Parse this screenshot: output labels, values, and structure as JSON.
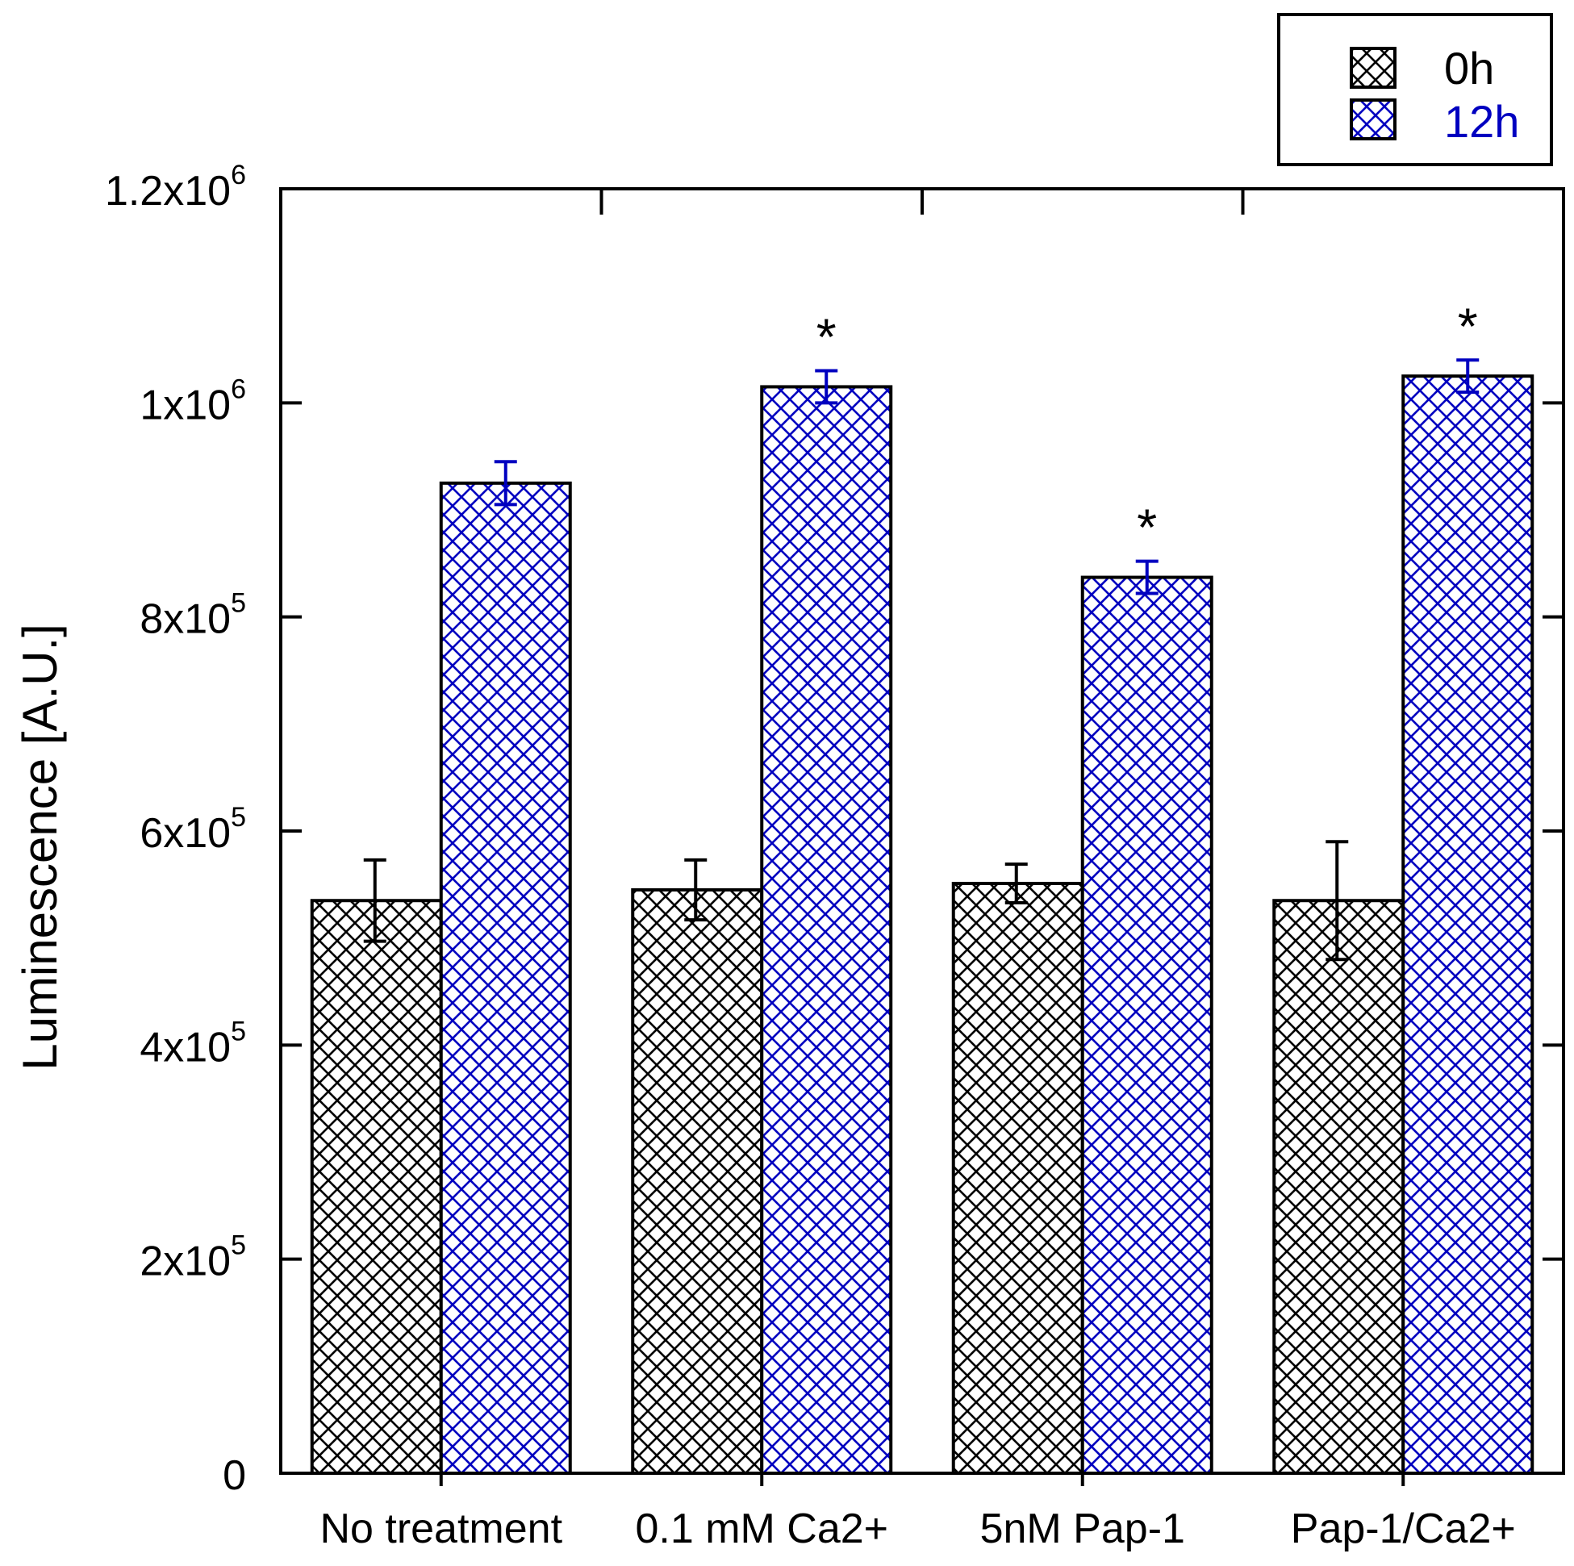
{
  "chart_data": {
    "type": "bar",
    "title": "",
    "xlabel": "",
    "ylabel": "Luminescence [A.U.]",
    "ylim": [
      0,
      1200000
    ],
    "categories": [
      "No treatment",
      "0.1 mM Ca2+",
      "5nM Pap-1",
      "Pap-1/Ca2+"
    ],
    "series": [
      {
        "name": "0h",
        "color": "#000000",
        "values": [
          535000,
          545000,
          551000,
          535000
        ],
        "errors": [
          38000,
          28000,
          18000,
          55000
        ]
      },
      {
        "name": "12h",
        "color": "#0000c0",
        "values": [
          925000,
          1015000,
          837000,
          1025000
        ],
        "errors": [
          20000,
          15000,
          15000,
          15000
        ]
      }
    ],
    "significance": [
      "",
      "*",
      "*",
      "*"
    ],
    "yticks": [
      {
        "value": 0,
        "mantissa": "0",
        "exponent": ""
      },
      {
        "value": 200000,
        "mantissa": "2x10",
        "exponent": "5"
      },
      {
        "value": 400000,
        "mantissa": "4x10",
        "exponent": "5"
      },
      {
        "value": 600000,
        "mantissa": "6x10",
        "exponent": "5"
      },
      {
        "value": 800000,
        "mantissa": "8x10",
        "exponent": "5"
      },
      {
        "value": 1000000,
        "mantissa": "1x10",
        "exponent": "6"
      },
      {
        "value": 1200000,
        "mantissa": "1.2x10",
        "exponent": "6"
      }
    ],
    "legend": {
      "position": "top-right",
      "entries": [
        "0h",
        "12h"
      ]
    }
  }
}
